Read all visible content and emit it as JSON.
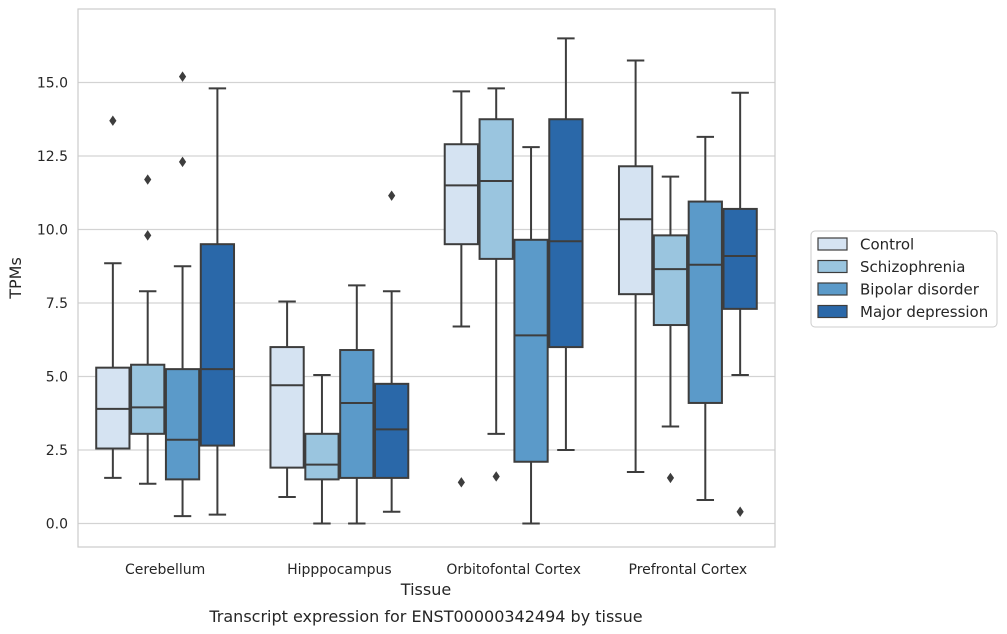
{
  "chart_data": {
    "type": "boxplot",
    "caption": "Transcript expression for ENST00000342494 by tissue",
    "xlabel": "Tissue",
    "ylabel": "TPMs",
    "ylim": [
      -0.8,
      17.5
    ],
    "yticks": [
      "0.0",
      "2.5",
      "5.0",
      "7.5",
      "10.0",
      "12.5",
      "15.0"
    ],
    "ytick_values": [
      0,
      2.5,
      5,
      7.5,
      10,
      12.5,
      15
    ],
    "grid": "horizontal",
    "legend_position": "right",
    "categories": [
      "Cerebellum",
      "Hipppocampus",
      "Orbitofontal Cortex",
      "Prefrontal Cortex"
    ],
    "series": [
      {
        "name": "Control",
        "color": "#d5e3f2",
        "boxes": [
          {
            "whislo": 1.55,
            "q1": 2.55,
            "med": 3.9,
            "q3": 5.3,
            "whishi": 8.85,
            "fliers": [
              13.7
            ]
          },
          {
            "whislo": 0.9,
            "q1": 1.9,
            "med": 4.7,
            "q3": 6.0,
            "whishi": 7.55,
            "fliers": []
          },
          {
            "whislo": 6.7,
            "q1": 9.5,
            "med": 11.5,
            "q3": 12.9,
            "whishi": 14.7,
            "fliers": [
              1.4
            ]
          },
          {
            "whislo": 1.75,
            "q1": 7.8,
            "med": 10.35,
            "q3": 12.15,
            "whishi": 15.75,
            "fliers": []
          }
        ]
      },
      {
        "name": "Schizophrenia",
        "color": "#9ac5df",
        "boxes": [
          {
            "whislo": 1.35,
            "q1": 3.05,
            "med": 3.95,
            "q3": 5.4,
            "whishi": 7.9,
            "fliers": [
              11.7,
              9.8
            ]
          },
          {
            "whislo": 0.0,
            "q1": 1.5,
            "med": 2.0,
            "q3": 3.05,
            "whishi": 5.05,
            "fliers": []
          },
          {
            "whislo": 3.05,
            "q1": 9.0,
            "med": 11.65,
            "q3": 13.75,
            "whishi": 14.8,
            "fliers": [
              1.6
            ]
          },
          {
            "whislo": 3.3,
            "q1": 6.75,
            "med": 8.65,
            "q3": 9.8,
            "whishi": 11.8,
            "fliers": [
              1.55
            ]
          }
        ]
      },
      {
        "name": "Bipolar disorder",
        "color": "#5b9ac9",
        "boxes": [
          {
            "whislo": 0.25,
            "q1": 1.5,
            "med": 2.85,
            "q3": 5.25,
            "whishi": 8.75,
            "fliers": [
              15.2,
              12.3
            ]
          },
          {
            "whislo": 0.0,
            "q1": 1.55,
            "med": 4.1,
            "q3": 5.9,
            "whishi": 8.1,
            "fliers": []
          },
          {
            "whislo": 0.0,
            "q1": 2.1,
            "med": 6.4,
            "q3": 9.65,
            "whishi": 12.8,
            "fliers": []
          },
          {
            "whislo": 0.8,
            "q1": 4.1,
            "med": 8.8,
            "q3": 10.95,
            "whishi": 13.15,
            "fliers": []
          }
        ]
      },
      {
        "name": "Major depression",
        "color": "#2a68a9",
        "boxes": [
          {
            "whislo": 0.3,
            "q1": 2.65,
            "med": 5.25,
            "q3": 9.5,
            "whishi": 14.8,
            "fliers": []
          },
          {
            "whislo": 0.4,
            "q1": 1.55,
            "med": 3.2,
            "q3": 4.75,
            "whishi": 7.9,
            "fliers": [
              11.15
            ]
          },
          {
            "whislo": 2.5,
            "q1": 6.0,
            "med": 9.6,
            "q3": 13.75,
            "whishi": 16.5,
            "fliers": []
          },
          {
            "whislo": 5.05,
            "q1": 7.3,
            "med": 9.1,
            "q3": 10.7,
            "whishi": 14.65,
            "fliers": [
              0.4
            ]
          }
        ]
      }
    ]
  }
}
